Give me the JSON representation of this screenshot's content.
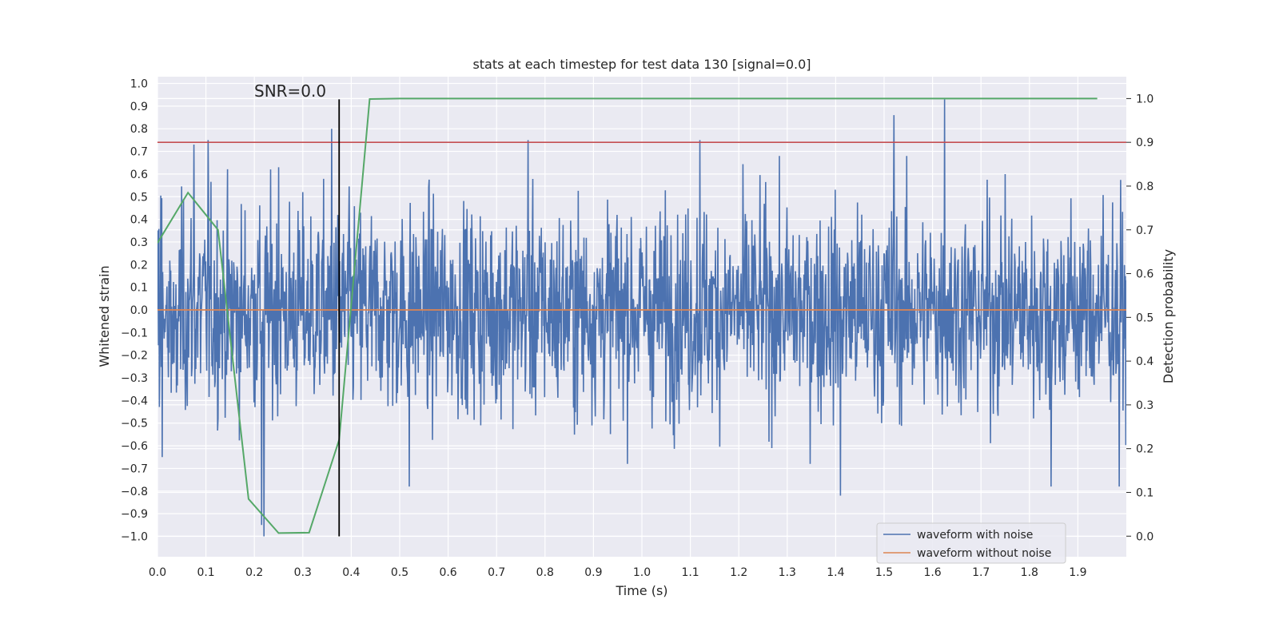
{
  "chart_data": {
    "type": "line",
    "title": "stats at each timestep for test data 130 [signal=0.0]",
    "xlabel": "Time (s)",
    "ylabel": "Whitened strain",
    "y2label": "Detection probability",
    "annotation": "SNR=0.0",
    "xlim": [
      0.0,
      2.0
    ],
    "ylim": [
      -1.09,
      1.03
    ],
    "y2lim": [
      -0.047,
      1.05
    ],
    "xticks": [
      "0.0",
      "0.1",
      "0.2",
      "0.3",
      "0.4",
      "0.5",
      "0.6",
      "0.7",
      "0.8",
      "0.9",
      "1.0",
      "1.1",
      "1.2",
      "1.3",
      "1.4",
      "1.5",
      "1.6",
      "1.7",
      "1.8",
      "1.9"
    ],
    "yticks": [
      "1.0",
      "0.9",
      "0.8",
      "0.7",
      "0.6",
      "0.5",
      "0.4",
      "0.3",
      "0.2",
      "0.1",
      "0.0",
      "-0.1",
      "-0.2",
      "-0.3",
      "-0.4",
      "-0.5",
      "-0.6",
      "-0.7",
      "-0.8",
      "-0.9",
      "-1.0"
    ],
    "y2ticks": [
      "1.0",
      "0.9",
      "0.8",
      "0.7",
      "0.6",
      "0.5",
      "0.4",
      "0.3",
      "0.2",
      "0.1",
      "0.0"
    ],
    "grid": true,
    "legend_position": "lower-right",
    "series": [
      {
        "name": "waveform with noise",
        "color": "#4c72b0",
        "axis": "left",
        "style": "noise",
        "n": 2048,
        "amplitude": 0.45,
        "spikes": [
          [
            0.01,
            -0.65
          ],
          [
            0.075,
            0.73
          ],
          [
            0.105,
            0.75
          ],
          [
            0.215,
            -0.95
          ],
          [
            0.22,
            -1.0
          ],
          [
            0.25,
            0.63
          ],
          [
            0.36,
            0.8
          ],
          [
            0.52,
            -0.78
          ],
          [
            0.765,
            0.75
          ],
          [
            1.12,
            0.75
          ],
          [
            1.41,
            -0.82
          ],
          [
            1.52,
            0.86
          ],
          [
            1.625,
            0.93
          ],
          [
            1.845,
            -0.78
          ],
          [
            1.985,
            -0.78
          ]
        ]
      },
      {
        "name": "waveform without noise",
        "color": "#dd8452",
        "axis": "left",
        "x": [
          0.0,
          2.0
        ],
        "y": [
          0.0,
          0.0
        ]
      }
    ],
    "probability_series": {
      "color": "#55a868",
      "x": [
        0.0,
        0.063,
        0.125,
        0.188,
        0.25,
        0.313,
        0.375,
        0.438,
        0.5,
        1.0,
        1.5,
        1.94
      ],
      "y": [
        0.67,
        0.785,
        0.7,
        0.085,
        0.007,
        0.008,
        0.22,
        0.999,
        1.0,
        1.0,
        1.0,
        1.0
      ]
    },
    "threshold": {
      "value": 0.9,
      "color": "#c44e52",
      "axis": "right"
    },
    "marker_time": {
      "x": 0.375,
      "y_from": -1.0,
      "y_to": 0.93,
      "color": "#000000"
    }
  }
}
